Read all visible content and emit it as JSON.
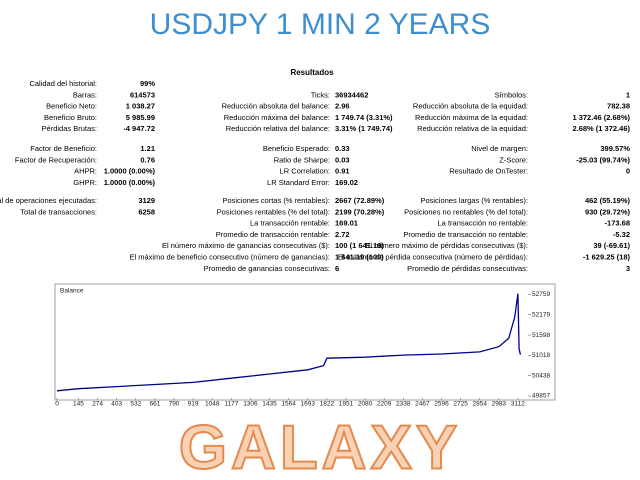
{
  "header": {
    "title": "USDJPY 1 MIN 2 YEARS"
  },
  "report": {
    "title": "Resultados",
    "sections": [
      [
        {
          "left": {
            "label": "Calidad del historial:",
            "value": "99%"
          }
        },
        {
          "left": {
            "label": "Barras:",
            "value": "614573"
          },
          "middle": {
            "label": "Ticks:",
            "value": "36934462"
          },
          "right": {
            "label": "Símbolos:",
            "value": "1"
          }
        },
        {
          "left": {
            "label": "Beneficio Neto:",
            "value": "1 038.27"
          },
          "middle": {
            "label": "Reducción absoluta del balance:",
            "value": "2.96"
          },
          "right": {
            "label": "Reducción absoluta de la equidad:",
            "value": "782.38"
          }
        },
        {
          "left": {
            "label": "Beneficio Bruto:",
            "value": "5 985.99"
          },
          "middle": {
            "label": "Reducción máxima del balance:",
            "value": "1 749.74 (3.31%)"
          },
          "right": {
            "label": "Reducción máxima de la equidad:",
            "value": "1 372.46 (2.68%)"
          }
        },
        {
          "left": {
            "label": "Pérdidas Brutas:",
            "value": "-4 947.72"
          },
          "middle": {
            "label": "Reducción relativa del balance:",
            "value": "3.31% (1 749.74)"
          },
          "right": {
            "label": "Reducción relativa de la equidad:",
            "value": "2.68% (1 372.46)"
          }
        }
      ],
      [
        {
          "left": {
            "label": "Factor de Beneficio:",
            "value": "1.21"
          },
          "middle": {
            "label": "Beneficio Esperado:",
            "value": "0.33"
          },
          "right": {
            "label": "Nivel de margen:",
            "value": "399.57%"
          }
        },
        {
          "left": {
            "label": "Factor de Recuperación:",
            "value": "0.76"
          },
          "middle": {
            "label": "Ratio de Sharpe:",
            "value": "0.03"
          },
          "right": {
            "label": "Z-Score:",
            "value": "-25.03 (99.74%)"
          }
        },
        {
          "left": {
            "label": "AHPR:",
            "value": "1.0000 (0.00%)"
          },
          "middle": {
            "label": "LR Correlation:",
            "value": "0.91"
          },
          "right": {
            "label": "Resultado de OnTester:",
            "value": "0"
          }
        },
        {
          "left": {
            "label": "GHPR:",
            "value": "1.0000 (0.00%)"
          },
          "middle": {
            "label": "LR Standard Error:",
            "value": "169.02"
          }
        }
      ],
      [
        {
          "left": {
            "label": "Total de operaciones ejecutadas:",
            "value": "3129"
          },
          "middle": {
            "label": "Posiciones cortas (% rentables):",
            "value": "2667 (72.89%)"
          },
          "right": {
            "label": "Posiciones largas (% rentables):",
            "value": "462 (55.19%)"
          }
        },
        {
          "left": {
            "label": "Total de transacciones:",
            "value": "6258"
          },
          "middle": {
            "label": "Posiciones rentables (% del total):",
            "value": "2199 (70.28%)"
          },
          "right": {
            "label": "Posiciones no rentables (% del total):",
            "value": "930 (29.72%)"
          }
        },
        {
          "middle": {
            "label": "La transacción rentable:",
            "value": "169.01"
          },
          "right": {
            "label": "La transacción no rentable:",
            "value": "-173.68"
          }
        },
        {
          "middle": {
            "label": "Promedio de transacción rentable:",
            "value": "2.72"
          },
          "right": {
            "label": "Promedio de transacción no rentable:",
            "value": "-5.32"
          }
        },
        {
          "middle": {
            "label": "El número máximo de ganancias consecutivas ($):",
            "value": "100 (1 641.19)"
          },
          "right": {
            "label": "El número máximo de pérdidas consecutivas ($):",
            "value": "39 (-69.61)"
          }
        },
        {
          "middle": {
            "label": "El máximo de beneficio consecutivo (número de ganancias):",
            "value": "1 641.19 (100)"
          },
          "right": {
            "label": "El máximo de pérdida consecutiva (número de pérdidas):",
            "value": "-1 629.25 (18)"
          }
        },
        {
          "middle": {
            "label": "Promedio de ganancias consecutivas:",
            "value": "6"
          },
          "right": {
            "label": "Promedio de pérdidas consecutivas:",
            "value": "3"
          }
        }
      ]
    ]
  },
  "chart_data": {
    "type": "line",
    "title": "Balance",
    "x": [
      0,
      145,
      403,
      661,
      919,
      1177,
      1435,
      1693,
      1800,
      1822,
      2080,
      2338,
      2596,
      2854,
      2983,
      3050,
      3090,
      3112,
      3120,
      3129
    ],
    "series": [
      {
        "name": "Balance",
        "color": "#00008b",
        "values": [
          50007,
          50067,
          50127,
          50187,
          50247,
          50367,
          50487,
          50607,
          50727,
          50937,
          50967,
          51027,
          51057,
          51117,
          51267,
          51507,
          52107,
          52780,
          51207,
          51038
        ]
      }
    ],
    "xlim": [
      0,
      3180
    ],
    "ylim": [
      49800,
      53000
    ],
    "xticks": [
      0,
      145,
      274,
      403,
      532,
      661,
      790,
      919,
      1048,
      1177,
      1306,
      1435,
      1564,
      1693,
      1822,
      1951,
      2080,
      2209,
      2338,
      2467,
      2596,
      2725,
      2854,
      2983,
      3112
    ],
    "yticks": [
      49857,
      50438,
      51018,
      51598,
      52179,
      52759
    ]
  },
  "footer": {
    "title": "GALAXY"
  }
}
